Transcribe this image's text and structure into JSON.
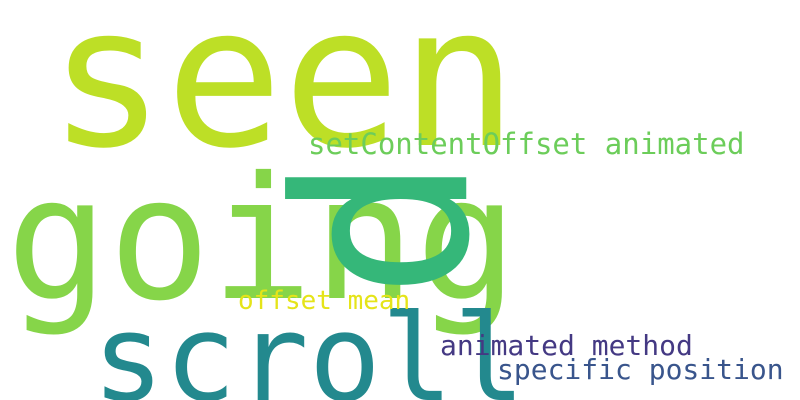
{
  "word_cloud": {
    "words": [
      {
        "id": "seen",
        "text": "seen",
        "color": "#bddf26"
      },
      {
        "id": "going",
        "text": "going",
        "color": "#86d549"
      },
      {
        "id": "scroll",
        "text": "scroll",
        "color": "#23898e"
      },
      {
        "id": "p",
        "text": "p",
        "color": "#35b779"
      },
      {
        "id": "setcontent",
        "text": "setContentOffset animated",
        "color": "#6ccd5a"
      },
      {
        "id": "offset",
        "text": "offset mean",
        "color": "#e5e419"
      },
      {
        "id": "animated",
        "text": "animated method",
        "color": "#443983"
      },
      {
        "id": "specific",
        "text": "specific position",
        "color": "#39558c"
      }
    ]
  }
}
